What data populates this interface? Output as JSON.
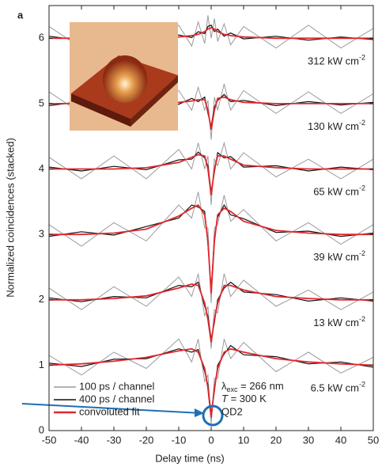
{
  "chart_data": {
    "type": "line",
    "panel_label": "a",
    "xlabel": "Delay time (ns)",
    "ylabel": "Normalized coincidences (stacked)",
    "xlim": [
      -50,
      50
    ],
    "xticks": [
      -50,
      -40,
      -30,
      -20,
      -10,
      0,
      10,
      20,
      30,
      40,
      50
    ],
    "ylim": [
      0,
      6.5
    ],
    "yticks": [
      0,
      1,
      2,
      3,
      4,
      5,
      6
    ],
    "x": [
      -50,
      -40,
      -30,
      -20,
      -10,
      -6,
      -4,
      -2,
      -1,
      0,
      1,
      2,
      4,
      6,
      10,
      20,
      30,
      40,
      50
    ],
    "series": [
      {
        "name": "100 ps / channel",
        "color": "#9a9a9a",
        "values": [
          [
            1.15,
            0.85,
            1.2,
            0.95,
            1.4,
            1.05,
            1.4,
            0.75,
            0.85,
            0.1,
            0.8,
            0.8,
            1.4,
            1.1,
            1.35,
            0.9,
            1.2,
            0.88,
            1.12
          ],
          [
            2.18,
            1.85,
            2.2,
            1.9,
            2.35,
            2.05,
            2.4,
            1.75,
            1.9,
            1.25,
            1.85,
            1.8,
            2.4,
            2.05,
            2.3,
            1.9,
            2.15,
            1.85,
            2.12
          ],
          [
            3.15,
            2.82,
            3.18,
            2.9,
            3.45,
            3.25,
            3.65,
            3.1,
            3.1,
            1.95,
            3.1,
            3.15,
            3.6,
            3.2,
            3.38,
            2.9,
            3.18,
            2.85,
            3.15
          ],
          [
            4.18,
            3.85,
            4.2,
            3.85,
            4.3,
            4.0,
            4.4,
            4.0,
            4.2,
            3.45,
            4.15,
            4.05,
            4.4,
            4.0,
            4.25,
            3.88,
            4.15,
            3.85,
            4.15
          ],
          [
            5.18,
            4.85,
            5.18,
            4.85,
            5.2,
            4.9,
            5.25,
            4.9,
            5.05,
            4.45,
            5.1,
            4.9,
            5.3,
            4.9,
            5.2,
            4.85,
            5.18,
            4.85,
            5.15
          ],
          [
            6.18,
            5.85,
            6.2,
            5.85,
            6.2,
            5.88,
            6.25,
            5.92,
            6.35,
            6.0,
            6.3,
            5.95,
            6.22,
            5.9,
            6.18,
            5.85,
            6.2,
            5.85,
            6.15
          ]
        ]
      },
      {
        "name": "400 ps / channel",
        "color": "#111111",
        "values": [
          [
            1.03,
            0.98,
            1.09,
            1.1,
            1.25,
            1.2,
            1.24,
            0.9,
            0.7,
            0.25,
            0.6,
            1.0,
            1.17,
            1.3,
            1.16,
            1.13,
            1.02,
            1.05,
            0.97
          ],
          [
            2.03,
            1.97,
            2.05,
            2.03,
            2.22,
            2.2,
            2.27,
            1.9,
            1.75,
            1.4,
            1.65,
            2.0,
            2.18,
            2.27,
            2.12,
            2.08,
            1.98,
            2.03,
            1.98
          ],
          [
            2.97,
            3.04,
            2.99,
            3.12,
            3.25,
            3.45,
            3.42,
            3.35,
            2.85,
            2.15,
            2.95,
            3.26,
            3.45,
            3.3,
            3.24,
            3.03,
            3.05,
            2.97,
            3.02
          ],
          [
            4.03,
            3.97,
            4.04,
            3.99,
            4.14,
            4.15,
            4.26,
            4.17,
            4.05,
            3.65,
            3.95,
            4.25,
            4.17,
            4.19,
            4.03,
            4.05,
            3.97,
            4.03,
            3.99
          ],
          [
            4.97,
            5.03,
            4.98,
            5.04,
            4.99,
            5.08,
            5.03,
            5.1,
            4.85,
            4.65,
            4.95,
            5.05,
            5.14,
            5.03,
            5.05,
            4.97,
            5.03,
            4.98,
            5.02
          ],
          [
            6.03,
            5.97,
            6.04,
            5.98,
            6.05,
            6.01,
            6.1,
            6.07,
            6.18,
            6.2,
            6.1,
            6.14,
            6.03,
            6.08,
            5.99,
            6.03,
            5.97,
            6.02,
            5.98
          ]
        ]
      },
      {
        "name": "convoluted fit",
        "color": "#e0282e",
        "values": [
          [
            1.0,
            1.02,
            1.06,
            1.12,
            1.22,
            1.25,
            1.2,
            0.95,
            0.65,
            0.2,
            0.65,
            0.95,
            1.2,
            1.25,
            1.2,
            1.1,
            1.05,
            1.02,
            1.0
          ],
          [
            2.0,
            2.0,
            2.02,
            2.06,
            2.18,
            2.24,
            2.22,
            1.95,
            1.7,
            1.35,
            1.7,
            1.95,
            2.22,
            2.22,
            2.15,
            2.05,
            2.02,
            2.0,
            2.0
          ],
          [
            3.0,
            3.0,
            3.02,
            3.08,
            3.28,
            3.4,
            3.45,
            3.3,
            2.9,
            2.1,
            2.9,
            3.3,
            3.4,
            3.35,
            3.2,
            3.06,
            3.02,
            3.0,
            3.0
          ],
          [
            4.0,
            4.0,
            4.0,
            4.02,
            4.1,
            4.18,
            4.22,
            4.2,
            4.0,
            3.6,
            4.0,
            4.2,
            4.2,
            4.15,
            4.06,
            4.02,
            4.0,
            4.0,
            4.0
          ],
          [
            5.0,
            5.0,
            5.0,
            5.0,
            5.02,
            5.04,
            5.06,
            5.06,
            4.9,
            4.6,
            4.9,
            5.08,
            5.1,
            5.06,
            5.02,
            5.0,
            5.0,
            5.0,
            5.0
          ],
          [
            6.0,
            6.0,
            6.0,
            6.0,
            6.02,
            6.04,
            6.06,
            6.1,
            6.14,
            6.16,
            6.14,
            6.1,
            6.06,
            6.04,
            6.02,
            6.0,
            6.0,
            6.0,
            6.0
          ]
        ]
      }
    ],
    "power_labels": [
      {
        "text": "6.5 kW cm",
        "sup": "-2"
      },
      {
        "text": "13 kW cm",
        "sup": "-2"
      },
      {
        "text": "39 kW cm",
        "sup": "-2"
      },
      {
        "text": "65 kW cm",
        "sup": "-2"
      },
      {
        "text": "130 kW cm",
        "sup": "-2"
      },
      {
        "text": "312 kW cm",
        "sup": "-2"
      }
    ],
    "excitation": {
      "symbol": "λ",
      "sub": "exc",
      "rest": " = 266 nm"
    },
    "temperature": {
      "symbol": "T",
      "rest": " = 300 K"
    },
    "sample": "QD2"
  }
}
